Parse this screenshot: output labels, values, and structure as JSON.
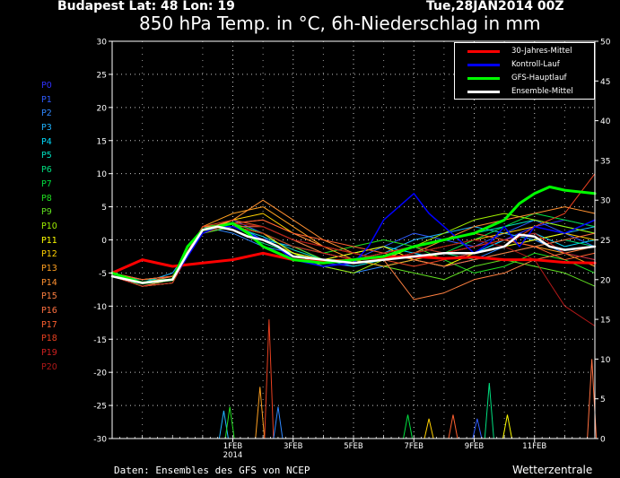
{
  "header": {
    "location": "Budapest   Lat: 48  Lon: 19",
    "run": "Tue,28JAN2014 00Z",
    "title": "850 hPa Temp. in °C, 6h-Niederschlag in mm"
  },
  "footer": {
    "credit": "Daten: Ensembles des GFS von NCEP",
    "brand": "Wetterzentrale"
  },
  "members": [
    "P0",
    "P1",
    "P2",
    "P3",
    "P4",
    "P5",
    "P6",
    "P7",
    "P8",
    "P9",
    "P10",
    "P11",
    "P12",
    "P13",
    "P14",
    "P15",
    "P16",
    "P17",
    "P18",
    "P19",
    "P20"
  ],
  "member_colors": [
    "#3030ff",
    "#2f5cff",
    "#2f88ff",
    "#20b4ff",
    "#00dcff",
    "#00e0c0",
    "#00e080",
    "#00e040",
    "#20e020",
    "#60e020",
    "#a0f000",
    "#ffff00",
    "#ffd000",
    "#ffa020",
    "#ff9030",
    "#ff8040",
    "#ff7040",
    "#ff6030",
    "#e84020",
    "#d02020",
    "#b01818"
  ],
  "legend": [
    {
      "label": "30-Jahres-Mittel",
      "color": "#ff0000"
    },
    {
      "label": "Kontroll-Lauf",
      "color": "#0000ff"
    },
    {
      "label": "GFS-Hauptlauf",
      "color": "#00ff00"
    },
    {
      "label": "Ensemble-Mittel",
      "color": "#ffffff"
    }
  ],
  "chart_data": {
    "type": "line",
    "title": "850 hPa Temp. in °C, 6h-Niederschlag in mm",
    "x_ticks": [
      {
        "t": 4,
        "label": "1FEB",
        "sublabel": "2014"
      },
      {
        "t": 6,
        "label": "3FEB"
      },
      {
        "t": 8,
        "label": "5FEB"
      },
      {
        "t": 10,
        "label": "7FEB"
      },
      {
        "t": 12,
        "label": "9FEB"
      },
      {
        "t": 14,
        "label": "11FEB"
      }
    ],
    "x_range": [
      0,
      16
    ],
    "y_left": {
      "range": [
        -30,
        30
      ],
      "ticks": [
        30,
        25,
        20,
        15,
        10,
        5,
        0,
        -5,
        -10,
        -15,
        -20,
        -25,
        -30
      ]
    },
    "y_right": {
      "range": [
        0,
        50
      ],
      "ticks": [
        50,
        45,
        40,
        35,
        30,
        25,
        20,
        15,
        10,
        5,
        0
      ]
    },
    "grid": true,
    "legend_position": "top-right",
    "series": [
      {
        "name": "30-Jahres-Mittel",
        "color": "#ff0000",
        "width": 3,
        "t": [
          0,
          1,
          2,
          3,
          4,
          5,
          6,
          7,
          8,
          9,
          10,
          11,
          12,
          13,
          14,
          15,
          16
        ],
        "values": [
          -5.0,
          -3.0,
          -4.0,
          -3.5,
          -3.0,
          -2.0,
          -3.0,
          -3.3,
          -3.0,
          -2.6,
          -2.5,
          -2.8,
          -2.6,
          -3.0,
          -3.0,
          -3.4,
          -3.5
        ]
      },
      {
        "name": "Kontroll-Lauf",
        "color": "#0000ff",
        "width": 1.5,
        "t": [
          0,
          1,
          2,
          3,
          3.5,
          4,
          4.5,
          5,
          5.5,
          6,
          7,
          8,
          8.5,
          9,
          10,
          10.5,
          11,
          12,
          12.5,
          13,
          13.5,
          14,
          15,
          16
        ],
        "values": [
          -5.0,
          -6.5,
          -6.0,
          1.0,
          2.0,
          2.0,
          1.0,
          0.0,
          -1.0,
          -3.0,
          -4.0,
          -3.5,
          -1.0,
          3.0,
          7.0,
          4.0,
          2.0,
          -2.0,
          -0.5,
          2.0,
          -1.0,
          2.0,
          1.0,
          3.0
        ]
      },
      {
        "name": "GFS-Hauptlauf",
        "color": "#00ff00",
        "width": 3,
        "t": [
          0,
          1,
          2,
          2.5,
          3,
          3.5,
          4,
          4.5,
          5,
          5.5,
          6,
          7,
          8,
          9,
          10,
          11,
          12,
          12.5,
          13,
          13.5,
          14,
          14.5,
          15,
          16
        ],
        "values": [
          -5.0,
          -6.5,
          -6.0,
          -1.0,
          1.5,
          2.0,
          2.5,
          1.0,
          -1.0,
          -2.0,
          -3.0,
          -3.5,
          -3.0,
          -2.5,
          -1.0,
          0.0,
          1.0,
          2.0,
          3.0,
          5.5,
          7.0,
          8.0,
          7.5,
          7.0
        ]
      },
      {
        "name": "Ensemble-Mittel",
        "color": "#ffffff",
        "width": 2.5,
        "t": [
          0,
          1,
          2,
          2.5,
          3,
          3.5,
          4,
          4.5,
          5,
          5.5,
          6,
          7,
          8,
          9,
          10,
          11,
          12,
          13,
          13.5,
          14,
          14.5,
          15,
          16
        ],
        "values": [
          -5.5,
          -6.5,
          -6.0,
          -2.0,
          1.5,
          2.0,
          1.5,
          0.5,
          0.0,
          -1.0,
          -2.5,
          -3.0,
          -3.5,
          -3.0,
          -2.5,
          -2.0,
          -2.0,
          -1.0,
          0.8,
          0.5,
          -1.0,
          -1.5,
          -1.0
        ]
      }
    ],
    "ensemble_members": [
      {
        "name": "P0",
        "values": [
          -5,
          -6.5,
          -6,
          1.5,
          2,
          0.5,
          -3,
          -3.5,
          -4,
          -3,
          -2,
          -3,
          -2,
          0,
          2,
          3,
          2
        ]
      },
      {
        "name": "P1",
        "values": [
          -5,
          -6,
          -5.5,
          1,
          3,
          1,
          -2,
          -3,
          -3,
          -1,
          1,
          0,
          -1,
          1,
          3,
          1,
          -1
        ]
      },
      {
        "name": "P2",
        "values": [
          -5.5,
          -7,
          -6,
          2,
          1,
          -1,
          -2,
          -4,
          -5,
          -4,
          -3,
          -4,
          -3,
          -1,
          0,
          -2,
          -3
        ]
      },
      {
        "name": "P3",
        "values": [
          -5,
          -6.5,
          -5,
          1.5,
          2.5,
          0,
          -1,
          -2,
          -3,
          -2,
          0,
          1,
          2,
          1,
          0,
          1,
          2
        ]
      },
      {
        "name": "P4",
        "values": [
          -5,
          -7,
          -6.5,
          2,
          2,
          1,
          -1,
          -3,
          -2,
          -1,
          -2,
          -3,
          -2,
          0,
          1,
          -1,
          0
        ]
      },
      {
        "name": "P5",
        "values": [
          -5.5,
          -6,
          -6,
          1,
          2,
          0.5,
          -1.5,
          -3,
          -4,
          -3,
          -1,
          0,
          1,
          2,
          3,
          2,
          1
        ]
      },
      {
        "name": "P6",
        "values": [
          -5,
          -6.5,
          -5.5,
          2,
          1.5,
          -0.5,
          -2,
          -3.5,
          -3,
          -2,
          -1,
          -2,
          -3,
          -2,
          -1,
          0,
          -1
        ]
      },
      {
        "name": "P7",
        "values": [
          -5,
          -7,
          -6,
          1.5,
          3,
          2,
          0,
          -2,
          -3,
          -4,
          -3,
          -2,
          0,
          2,
          4,
          3,
          2
        ]
      },
      {
        "name": "P8",
        "values": [
          -5.5,
          -6.5,
          -6,
          2,
          2.5,
          1,
          -1,
          -2,
          -1,
          0,
          -1,
          -3,
          -5,
          -4,
          -2,
          -3,
          -5
        ]
      },
      {
        "name": "P9",
        "values": [
          -5,
          -6,
          -5.5,
          1,
          2,
          1,
          -1,
          -3,
          -3,
          -4,
          -5,
          -6,
          -4,
          -3,
          -4,
          -5,
          -7
        ]
      },
      {
        "name": "P10",
        "values": [
          -5,
          -6.5,
          -6,
          1.5,
          2,
          0,
          -2,
          -4,
          -5,
          -3,
          -1,
          1,
          3,
          4,
          3,
          2,
          1
        ]
      },
      {
        "name": "P11",
        "values": [
          -5.5,
          -7,
          -6.5,
          2,
          2,
          1,
          -2,
          -3,
          -2,
          -1,
          -3,
          -4,
          -2,
          -1,
          0,
          1,
          3
        ]
      },
      {
        "name": "P12",
        "values": [
          -5,
          -6.5,
          -6,
          1,
          3,
          4,
          1,
          -1,
          -2,
          -3,
          -2,
          -1,
          0,
          1,
          2,
          1,
          0
        ]
      },
      {
        "name": "P13",
        "values": [
          -5,
          -6,
          -5.5,
          2,
          4,
          5,
          2,
          -1,
          -3,
          -4,
          -3,
          -2,
          -1,
          0,
          -1,
          -2,
          -4
        ]
      },
      {
        "name": "P14",
        "values": [
          -5,
          -6.5,
          -6,
          1.5,
          3,
          6,
          3,
          0,
          -2,
          -3,
          -2,
          0,
          2,
          3,
          4,
          5,
          4
        ]
      },
      {
        "name": "P15",
        "values": [
          -5.5,
          -7,
          -6,
          1,
          2.5,
          3,
          1,
          -1,
          -2,
          -3,
          -9,
          -8,
          -6,
          -5,
          -3,
          -2,
          -1
        ]
      },
      {
        "name": "P16",
        "values": [
          -5,
          -6.5,
          -5.5,
          2,
          2,
          2,
          0,
          -2,
          -3,
          -2,
          -3,
          -4,
          -3,
          -2,
          -1,
          0,
          1
        ]
      },
      {
        "name": "P17",
        "values": [
          -5,
          -6,
          -5.5,
          1.5,
          2.5,
          3,
          1,
          0,
          -1,
          -2,
          -1,
          0,
          1,
          0,
          -1,
          -3,
          -2
        ]
      },
      {
        "name": "P18",
        "values": [
          -5,
          -6.5,
          -6,
          2,
          3,
          2,
          0,
          -1,
          -2,
          -3,
          -4,
          -3,
          -2,
          -1,
          2,
          4,
          10
        ]
      },
      {
        "name": "P19",
        "values": [
          -5.5,
          -7,
          -6.5,
          1.5,
          2,
          1,
          -1,
          -2,
          -3,
          -2,
          -1,
          -2,
          -1,
          0,
          1,
          -2,
          -3
        ]
      },
      {
        "name": "P20",
        "values": [
          -5,
          -6.5,
          -6,
          1,
          2.5,
          2,
          0,
          -1,
          -2,
          -3,
          -2,
          -1,
          0,
          -1,
          -3,
          -10,
          -13
        ]
      }
    ],
    "precipitation_mm_peaks": [
      {
        "t": 3.7,
        "mm": 3.5
      },
      {
        "t": 3.9,
        "mm": 4
      },
      {
        "t": 4.9,
        "mm": 6.5
      },
      {
        "t": 5.2,
        "mm": 15
      },
      {
        "t": 5.5,
        "mm": 4
      },
      {
        "t": 9.8,
        "mm": 3
      },
      {
        "t": 10.5,
        "mm": 2.5
      },
      {
        "t": 11.3,
        "mm": 3
      },
      {
        "t": 12.1,
        "mm": 2.5
      },
      {
        "t": 12.5,
        "mm": 7
      },
      {
        "t": 13.1,
        "mm": 3
      },
      {
        "t": 15.9,
        "mm": 10
      }
    ]
  }
}
